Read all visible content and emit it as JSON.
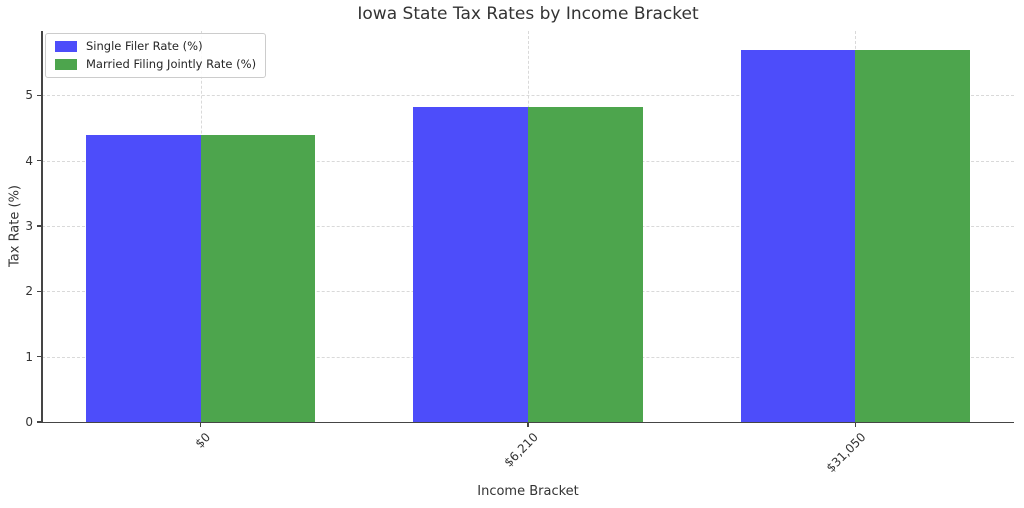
{
  "title": "Iowa State Tax Rates by Income Bracket",
  "chart_data": {
    "type": "bar",
    "title": "Iowa State Tax Rates by Income Bracket",
    "xlabel": "Income Bracket",
    "ylabel": "Tax Rate (%)",
    "categories": [
      "$0",
      "$6,210",
      "$31,050"
    ],
    "series": [
      {
        "name": "Single Filer Rate (%)",
        "color": "#4d4dfa",
        "values": [
          4.4,
          4.82,
          5.7
        ]
      },
      {
        "name": "Married Filing Jointly Rate (%)",
        "color": "#4da54d",
        "values": [
          4.4,
          4.82,
          5.7
        ]
      }
    ],
    "yticks": [
      0,
      1,
      2,
      3,
      4,
      5
    ],
    "ylim": [
      0,
      5.985
    ],
    "xlim": [
      -0.485,
      2.485
    ],
    "bar_width": 0.35,
    "grid": true,
    "legend_position": "upper left",
    "colors": {
      "grid": "#d9d9d9",
      "spine": "#454545",
      "text": "#333333"
    }
  }
}
